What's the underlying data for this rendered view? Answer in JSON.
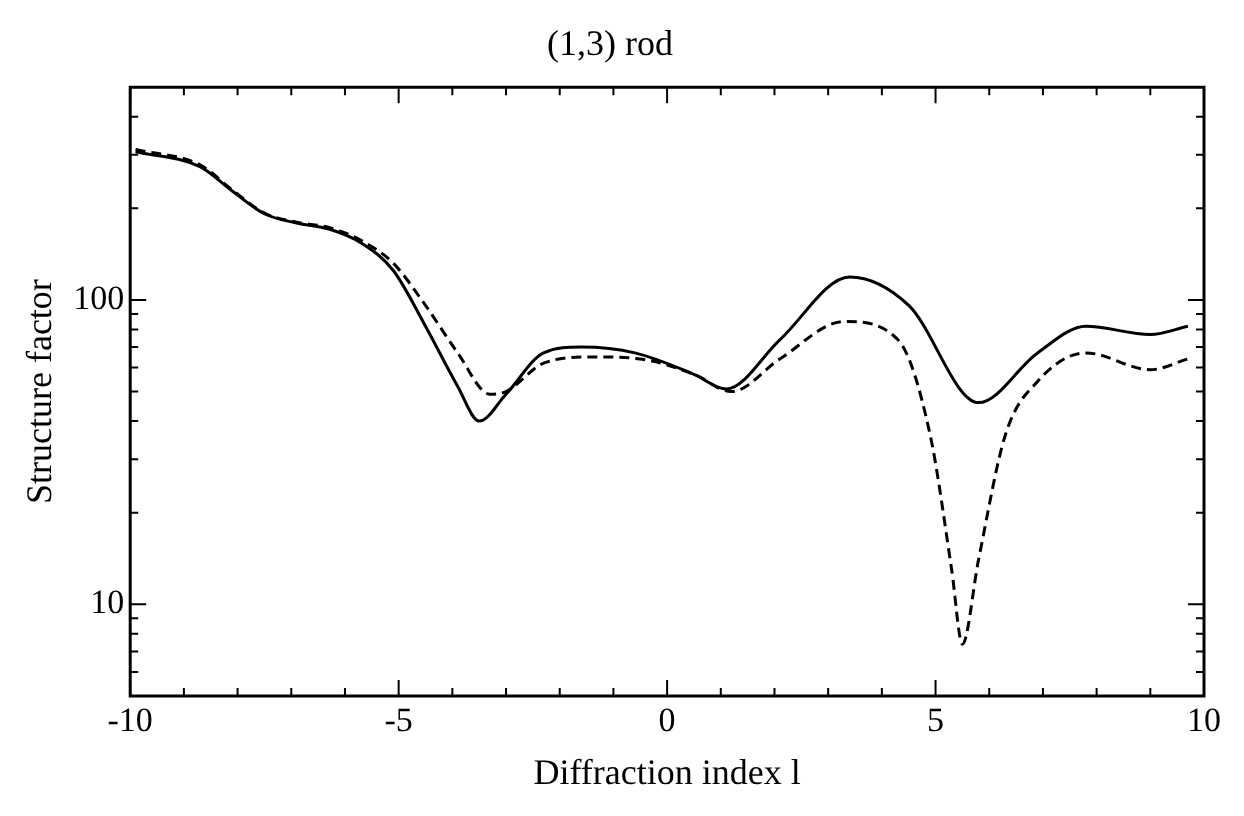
{
  "chart_data": {
    "type": "line",
    "title": "(1,3) rod",
    "xlabel": "Diffraction index l",
    "ylabel": "Structure factor",
    "log": "y",
    "grid": false,
    "legend": false,
    "marker": "none",
    "xlim": [
      -10,
      10
    ],
    "ylim": [
      5,
      500
    ],
    "xticks": [
      -10,
      {
        "value": -9,
        "label": null
      },
      {
        "value": -8,
        "label": null
      },
      {
        "value": -7,
        "label": null
      },
      {
        "value": -6,
        "label": null
      },
      -5,
      {
        "value": -4,
        "label": null
      },
      {
        "value": -3,
        "label": null
      },
      {
        "value": -2,
        "label": null
      },
      {
        "value": -1,
        "label": null
      },
      0,
      {
        "value": 1,
        "label": null
      },
      {
        "value": 2,
        "label": null
      },
      {
        "value": 3,
        "label": null
      },
      {
        "value": 4,
        "label": null
      },
      5,
      {
        "value": 6,
        "label": null
      },
      {
        "value": 7,
        "label": null
      },
      {
        "value": 8,
        "label": null
      },
      {
        "value": 9,
        "label": null
      },
      10
    ],
    "yticks": [
      {
        "value": 6,
        "label": null
      },
      {
        "value": 7,
        "label": null
      },
      {
        "value": 8,
        "label": null
      },
      {
        "value": 9,
        "label": null
      },
      10,
      {
        "value": 20,
        "label": null
      },
      {
        "value": 30,
        "label": null
      },
      {
        "value": 40,
        "label": null
      },
      {
        "value": 50,
        "label": null
      },
      {
        "value": 60,
        "label": null
      },
      {
        "value": 70,
        "label": null
      },
      {
        "value": 80,
        "label": null
      },
      {
        "value": 90,
        "label": null
      },
      100,
      {
        "value": 200,
        "label": null
      },
      {
        "value": 300,
        "label": null
      },
      {
        "value": 400,
        "label": null
      }
    ],
    "series": [
      {
        "color": "#000000",
        "line_style": "solid",
        "x": [
          -9.9,
          -8.7,
          -8.1,
          -7.5,
          -6.9,
          -6.3,
          -5.7,
          -5.1,
          -4.5,
          -3.9,
          -3.5,
          -3.0,
          -2.3,
          -1.6,
          -0.6,
          0.5,
          1.1,
          2.1,
          3.4,
          4.5,
          5.8,
          6.9,
          7.8,
          9.0,
          9.7
        ],
        "values": [
          307,
          274,
          228,
          192,
          179,
          171,
          154,
          125,
          82,
          52,
          40,
          49,
          67,
          70,
          67,
          57,
          51,
          74,
          119,
          96,
          46,
          67,
          82,
          77,
          82
        ]
      },
      {
        "color": "#000000",
        "line_style": "dashed",
        "x": [
          -9.9,
          -8.7,
          -8.1,
          -7.5,
          -6.9,
          -6.3,
          -5.7,
          -5.1,
          -4.5,
          -3.9,
          -3.3,
          -3.0,
          -2.3,
          -1.4,
          -0.5,
          0.5,
          1.2,
          2.1,
          3.3,
          4.3,
          4.9,
          5.3,
          5.5,
          5.8,
          6.3,
          6.9,
          7.8,
          9.0,
          9.7
        ],
        "values": [
          312,
          278,
          230,
          193,
          180,
          173,
          157,
          132,
          96,
          67,
          49,
          50,
          62,
          65,
          64,
          57,
          50,
          64,
          85,
          74,
          36,
          13,
          7.4,
          14,
          36,
          54,
          67,
          59,
          64
        ]
      }
    ]
  }
}
